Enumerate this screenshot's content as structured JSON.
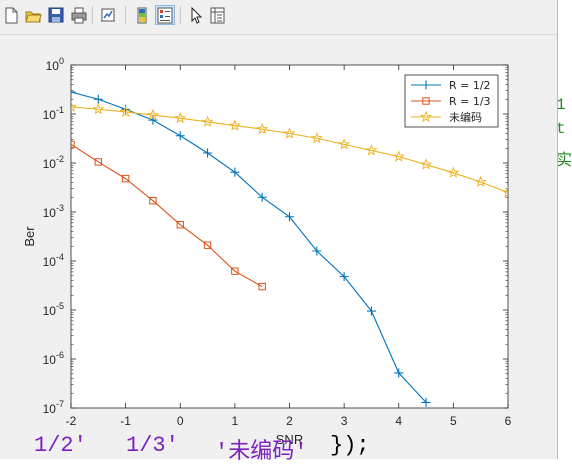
{
  "toolbar": {
    "buttons": [
      {
        "id": "new",
        "icon": "new-file-icon"
      },
      {
        "id": "open",
        "icon": "open-folder-icon"
      },
      {
        "id": "save",
        "icon": "save-icon"
      },
      {
        "id": "print",
        "icon": "print-icon"
      },
      {
        "id": "link",
        "icon": "link-plot-icon"
      },
      {
        "id": "colorbar",
        "icon": "colorbar-icon"
      },
      {
        "id": "legend",
        "icon": "legend-icon",
        "pressed": true
      },
      {
        "id": "pointer",
        "icon": "pointer-icon"
      },
      {
        "id": "property",
        "icon": "property-inspector-icon"
      }
    ]
  },
  "chart_data": {
    "type": "line",
    "xlabel": "SNR",
    "ylabel": "Ber",
    "xlim": [
      -2,
      6
    ],
    "ylim": [
      1e-07,
      1
    ],
    "yscale": "log",
    "grid": false,
    "legend_position": "top-right",
    "xticks": [
      "-2",
      "-1",
      "0",
      "1",
      "2",
      "3",
      "4",
      "5",
      "6"
    ],
    "yticks": [
      {
        "base": "10",
        "exp": "0"
      },
      {
        "base": "10",
        "exp": "-1"
      },
      {
        "base": "10",
        "exp": "-2"
      },
      {
        "base": "10",
        "exp": "-3"
      },
      {
        "base": "10",
        "exp": "-4"
      },
      {
        "base": "10",
        "exp": "-5"
      },
      {
        "base": "10",
        "exp": "-6"
      },
      {
        "base": "10",
        "exp": "-7"
      }
    ],
    "series": [
      {
        "name": "R = 1/2",
        "color": "#0072bd",
        "marker": "plus",
        "x": [
          -2,
          -1.5,
          -1,
          -0.5,
          0,
          0.5,
          1,
          1.5,
          2,
          2.5,
          3,
          3.5,
          4,
          4.5
        ],
        "y": [
          0.28,
          0.2,
          0.125,
          0.075,
          0.036,
          0.016,
          0.0065,
          0.002,
          0.0008,
          0.00016,
          4.8e-05,
          9.5e-06,
          5.2e-07,
          1.3e-07
        ]
      },
      {
        "name": "R = 1/3",
        "color": "#d95319",
        "marker": "square",
        "x": [
          -2,
          -1.5,
          -1,
          -0.5,
          0,
          0.5,
          1,
          1.5
        ],
        "y": [
          0.024,
          0.0105,
          0.0048,
          0.0017,
          0.00055,
          0.00021,
          6.2e-05,
          3e-05
        ]
      },
      {
        "name": "未编码",
        "color": "#edb120",
        "marker": "pentagram",
        "x": [
          -2,
          -1.5,
          -1,
          -0.5,
          0,
          0.5,
          1,
          1.5,
          2,
          2.5,
          3,
          3.5,
          4,
          4.5,
          5,
          5.5,
          6
        ],
        "y": [
          0.14,
          0.125,
          0.11,
          0.095,
          0.082,
          0.069,
          0.058,
          0.049,
          0.04,
          0.032,
          0.024,
          0.018,
          0.0135,
          0.0093,
          0.0063,
          0.0041,
          0.0025
        ]
      }
    ]
  },
  "editor_fragments": [
    {
      "text": "1/2'",
      "color": "#7a21c0"
    },
    {
      "text": "1/3'",
      "color": "#7a21c0"
    },
    {
      "text": "'未编码'",
      "color": "#7a21c0"
    },
    {
      "text": "});",
      "color": "#000000"
    }
  ]
}
